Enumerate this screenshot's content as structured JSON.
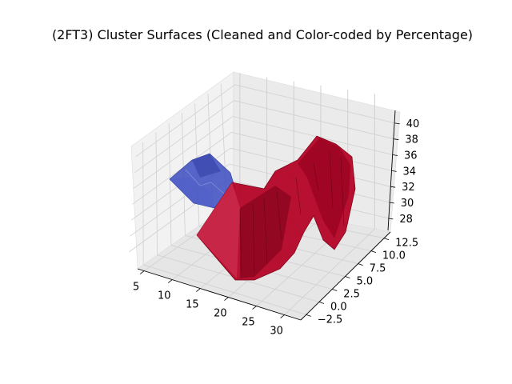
{
  "chart_data": {
    "type": "3d-surface",
    "title": "(2FT3) Cluster Surfaces (Cleaned and Color-coded by Percentage)",
    "xlabel": "",
    "ylabel": "",
    "zlabel": "",
    "x_ticks": [
      "5",
      "10",
      "15",
      "20",
      "25",
      "30"
    ],
    "y_ticks": [
      "−2.5",
      "0.0",
      "2.5",
      "5.0",
      "7.5",
      "10.0",
      "12.5"
    ],
    "z_ticks": [
      "28",
      "30",
      "32",
      "34",
      "36",
      "38",
      "40"
    ],
    "xlim": [
      3,
      33
    ],
    "ylim": [
      -3.5,
      14
    ],
    "zlim": [
      27,
      41
    ],
    "grid": true,
    "surfaces": [
      {
        "cluster": "blue",
        "color": "#3b4cc0",
        "x_range": [
          7,
          12
        ],
        "y_range": [
          -2,
          3
        ],
        "z_range": [
          31,
          35
        ]
      },
      {
        "cluster": "red",
        "color": "#b40426",
        "x_range": [
          12,
          31
        ],
        "y_range": [
          -2,
          13
        ],
        "z_range": [
          28,
          39
        ]
      }
    ]
  }
}
